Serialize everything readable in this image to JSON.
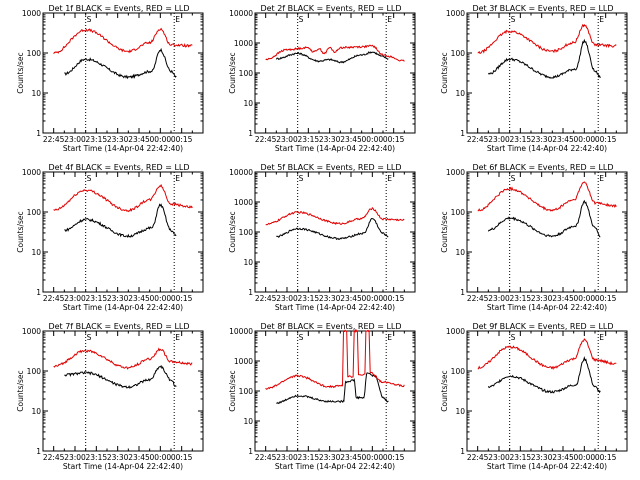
{
  "colors": {
    "events": "#000000",
    "lld": "#e00000",
    "axis": "#000000"
  },
  "chart_data": [
    {
      "type": "line",
      "title": "Det 1f BLACK = Events, RED = LLD",
      "xlabel": "Start Time (14-Apr-04 22:42:40)",
      "ylabel": "Counts/sec",
      "yscale": "log",
      "ytick_labels": [
        "1",
        "10",
        "100",
        "1000"
      ],
      "xtick_labels": [
        "22:45",
        "23:00",
        "23:15",
        "23:30",
        "23:45",
        "00:00",
        "00:15"
      ],
      "markers": [
        "S",
        "E"
      ],
      "series": [
        {
          "name": "Events",
          "points": [
            [
              1,
              30
            ],
            [
              3,
              70
            ],
            [
              7,
              25
            ],
            [
              9.2,
              35
            ],
            [
              10,
              120
            ],
            [
              11,
              35
            ],
            [
              11.5,
              25
            ]
          ]
        },
        {
          "name": "LLD",
          "points": [
            [
              0,
              100
            ],
            [
              3,
              380
            ],
            [
              7,
              110
            ],
            [
              9,
              180
            ],
            [
              10,
              400
            ],
            [
              11,
              160
            ],
            [
              13,
              150
            ]
          ]
        }
      ]
    },
    {
      "type": "line",
      "title": "Det 2f BLACK = Events, RED = LLD",
      "xlabel": "Start Time (14-Apr-04 22:42:40)",
      "ylabel": "Counts/sec",
      "yscale": "log",
      "ytick_labels": [
        "1",
        "10",
        "100",
        "1000",
        "10000"
      ],
      "xtick_labels": [
        "22:45",
        "23:00",
        "23:15",
        "23:30",
        "23:45",
        "00:00",
        "00:15"
      ],
      "markers": [
        "S",
        "E"
      ],
      "series": [
        {
          "name": "Events",
          "points": [
            [
              1,
              300
            ],
            [
              3,
              450
            ],
            [
              5,
              250
            ],
            [
              6,
              280
            ],
            [
              7,
              230
            ],
            [
              9,
              400
            ],
            [
              10,
              500
            ],
            [
              11,
              350
            ],
            [
              11.5,
              300
            ]
          ]
        },
        {
          "name": "LLD",
          "points": [
            [
              0,
              280
            ],
            [
              2,
              600
            ],
            [
              4,
              700
            ],
            [
              4.5,
              500
            ],
            [
              5,
              650
            ],
            [
              5.5,
              450
            ],
            [
              6,
              700
            ],
            [
              6.5,
              500
            ],
            [
              7,
              700
            ],
            [
              9,
              750
            ],
            [
              10,
              800
            ],
            [
              11,
              400
            ],
            [
              13,
              250
            ]
          ]
        }
      ]
    },
    {
      "type": "line",
      "title": "Det 3f BLACK = Events, RED = LLD",
      "xlabel": "Start Time (14-Apr-04 22:42:40)",
      "ylabel": "Counts/sec",
      "yscale": "log",
      "ytick_labels": [
        "1",
        "10",
        "100",
        "1000"
      ],
      "xtick_labels": [
        "22:45",
        "23:00",
        "23:15",
        "23:30",
        "23:45",
        "00:00",
        "00:15"
      ],
      "markers": [
        "S",
        "E"
      ],
      "series": [
        {
          "name": "Events",
          "points": [
            [
              1,
              30
            ],
            [
              3,
              70
            ],
            [
              7,
              25
            ],
            [
              9.2,
              40
            ],
            [
              10,
              200
            ],
            [
              11,
              35
            ],
            [
              11.5,
              25
            ]
          ]
        },
        {
          "name": "LLD",
          "points": [
            [
              0,
              100
            ],
            [
              3,
              350
            ],
            [
              7,
              110
            ],
            [
              9,
              180
            ],
            [
              10,
              500
            ],
            [
              11,
              160
            ],
            [
              13,
              150
            ]
          ]
        }
      ]
    },
    {
      "type": "line",
      "title": "Det 4f BLACK = Events, RED = LLD",
      "xlabel": "Start Time (14-Apr-04 22:42:40)",
      "ylabel": "Counts/sec",
      "yscale": "log",
      "ytick_labels": [
        "1",
        "10",
        "100",
        "1000"
      ],
      "xtick_labels": [
        "22:45",
        "23:00",
        "23:15",
        "23:30",
        "23:45",
        "00:00",
        "00:15"
      ],
      "markers": [
        "S",
        "E"
      ],
      "series": [
        {
          "name": "Events",
          "points": [
            [
              1,
              35
            ],
            [
              3,
              65
            ],
            [
              7,
              25
            ],
            [
              9.2,
              40
            ],
            [
              10,
              150
            ],
            [
              11,
              35
            ],
            [
              11.5,
              25
            ]
          ]
        },
        {
          "name": "LLD",
          "points": [
            [
              0,
              110
            ],
            [
              3,
              350
            ],
            [
              7,
              110
            ],
            [
              9,
              200
            ],
            [
              10,
              450
            ],
            [
              11,
              160
            ],
            [
              13,
              130
            ]
          ]
        }
      ]
    },
    {
      "type": "line",
      "title": "Det 5f BLACK = Events, RED = LLD",
      "xlabel": "Start Time (14-Apr-04 22:42:40)",
      "ylabel": "Counts/sec",
      "yscale": "log",
      "ytick_labels": [
        "1",
        "10",
        "100",
        "1000",
        "10000"
      ],
      "xtick_labels": [
        "22:45",
        "23:00",
        "23:15",
        "23:30",
        "23:45",
        "00:00",
        "00:15"
      ],
      "markers": [
        "S",
        "E"
      ],
      "series": [
        {
          "name": "Events",
          "points": [
            [
              1,
              70
            ],
            [
              3,
              130
            ],
            [
              7,
              60
            ],
            [
              9.2,
              90
            ],
            [
              10,
              280
            ],
            [
              11,
              90
            ],
            [
              11.5,
              70
            ]
          ]
        },
        {
          "name": "LLD",
          "points": [
            [
              0,
              180
            ],
            [
              3,
              450
            ],
            [
              7,
              190
            ],
            [
              9,
              280
            ],
            [
              10,
              600
            ],
            [
              11,
              270
            ],
            [
              13,
              250
            ]
          ]
        }
      ]
    },
    {
      "type": "line",
      "title": "Det 6f BLACK = Events, RED = LLD",
      "xlabel": "Start Time (14-Apr-04 22:42:40)",
      "ylabel": "Counts/sec",
      "yscale": "log",
      "ytick_labels": [
        "1",
        "10",
        "100",
        "1000"
      ],
      "xtick_labels": [
        "22:45",
        "23:00",
        "23:15",
        "23:30",
        "23:45",
        "00:00",
        "00:15"
      ],
      "markers": [
        "S",
        "E"
      ],
      "series": [
        {
          "name": "Events",
          "points": [
            [
              1,
              35
            ],
            [
              3,
              70
            ],
            [
              7,
              25
            ],
            [
              9.2,
              45
            ],
            [
              10,
              180
            ],
            [
              11,
              40
            ],
            [
              11.5,
              25
            ]
          ]
        },
        {
          "name": "LLD",
          "points": [
            [
              0,
              110
            ],
            [
              3,
              380
            ],
            [
              7,
              110
            ],
            [
              9,
              200
            ],
            [
              10,
              550
            ],
            [
              11,
              170
            ],
            [
              13,
              140
            ]
          ]
        }
      ]
    },
    {
      "type": "line",
      "title": "Det 7f BLACK = Events, RED = LLD",
      "xlabel": "Start Time (14-Apr-04 22:42:40)",
      "ylabel": "Counts/sec",
      "yscale": "log",
      "ytick_labels": [
        "1",
        "10",
        "100",
        "1000"
      ],
      "xtick_labels": [
        "22:45",
        "23:00",
        "23:15",
        "23:30",
        "23:45",
        "00:00",
        "00:15"
      ],
      "markers": [
        "S",
        "E"
      ],
      "series": [
        {
          "name": "Events",
          "points": [
            [
              1,
              80
            ],
            [
              3,
              90
            ],
            [
              7,
              40
            ],
            [
              9,
              60
            ],
            [
              10,
              130
            ],
            [
              11,
              60
            ],
            [
              11.5,
              40
            ]
          ]
        },
        {
          "name": "LLD",
          "points": [
            [
              0,
              130
            ],
            [
              3,
              320
            ],
            [
              7,
              120
            ],
            [
              9,
              200
            ],
            [
              10,
              350
            ],
            [
              11,
              170
            ],
            [
              13,
              150
            ]
          ]
        }
      ]
    },
    {
      "type": "line",
      "title": "Det 8f BLACK = Events, RED = LLD",
      "xlabel": "Start Time (14-Apr-04 22:42:40)",
      "ylabel": "Counts/sec",
      "yscale": "log",
      "ytick_labels": [
        "1",
        "10",
        "100",
        "1000",
        "10000"
      ],
      "xtick_labels": [
        "22:45",
        "23:00",
        "23:15",
        "23:30",
        "23:45",
        "00:00",
        "00:15"
      ],
      "markers": [
        "S",
        "E"
      ],
      "series": [
        {
          "name": "Events",
          "points": [
            [
              1,
              40
            ],
            [
              3,
              70
            ],
            [
              6,
              45
            ],
            [
              7.3,
              45
            ],
            [
              7.5,
              200
            ],
            [
              8.3,
              230
            ],
            [
              8.5,
              60
            ],
            [
              9.2,
              60
            ],
            [
              9.5,
              400
            ],
            [
              10.3,
              300
            ],
            [
              11,
              60
            ],
            [
              11.5,
              45
            ]
          ]
        },
        {
          "name": "LLD",
          "points": [
            [
              0,
              120
            ],
            [
              3,
              320
            ],
            [
              6,
              140
            ],
            [
              7.2,
              150
            ],
            [
              7.3,
              10000
            ],
            [
              7.6,
              10000
            ],
            [
              7.7,
              300
            ],
            [
              8.2,
              300
            ],
            [
              8.3,
              10000
            ],
            [
              8.6,
              10000
            ],
            [
              8.7,
              350
            ],
            [
              9.3,
              350
            ],
            [
              9.4,
              10000
            ],
            [
              9.7,
              10000
            ],
            [
              9.8,
              400
            ],
            [
              11,
              200
            ],
            [
              13,
              150
            ]
          ]
        }
      ]
    },
    {
      "type": "line",
      "title": "Det 9f BLACK = Events, RED = LLD",
      "xlabel": "Start Time (14-Apr-04 22:42:40)",
      "ylabel": "Counts/sec",
      "yscale": "log",
      "ytick_labels": [
        "1",
        "10",
        "100",
        "1000"
      ],
      "xtick_labels": [
        "22:45",
        "23:00",
        "23:15",
        "23:30",
        "23:45",
        "00:00",
        "00:15"
      ],
      "markers": [
        "S",
        "E"
      ],
      "series": [
        {
          "name": "Events",
          "points": [
            [
              1,
              40
            ],
            [
              3,
              75
            ],
            [
              7,
              30
            ],
            [
              9.2,
              45
            ],
            [
              10,
              200
            ],
            [
              11,
              40
            ],
            [
              11.5,
              30
            ]
          ]
        },
        {
          "name": "LLD",
          "points": [
            [
              0,
              120
            ],
            [
              3,
              400
            ],
            [
              7,
              120
            ],
            [
              9,
              200
            ],
            [
              10,
              600
            ],
            [
              11,
              190
            ],
            [
              13,
              150
            ]
          ]
        }
      ]
    }
  ]
}
